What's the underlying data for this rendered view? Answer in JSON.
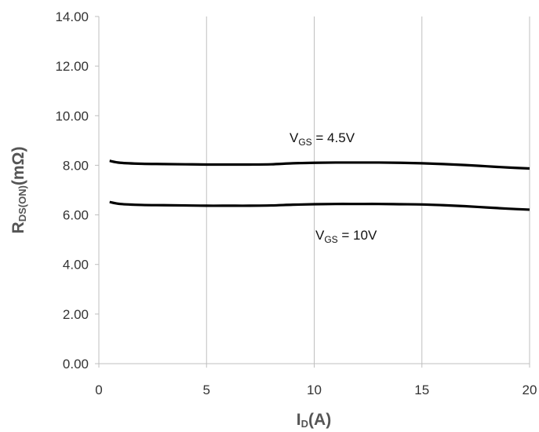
{
  "chart_data": {
    "type": "line",
    "xlabel": {
      "main": "I",
      "sub": "D",
      "tail": "(A)"
    },
    "ylabel": {
      "main": "R",
      "sub": "DS(ON)",
      "tail": "(mΩ)"
    },
    "xlim": [
      0,
      20
    ],
    "ylim": [
      0,
      14
    ],
    "xticks": [
      0,
      5,
      10,
      15,
      20
    ],
    "yticks": [
      0,
      2,
      4,
      6,
      8,
      10,
      12,
      14
    ],
    "xtick_labels": [
      "0",
      "5",
      "10",
      "15",
      "20"
    ],
    "ytick_labels": [
      "0.00",
      "2.00",
      "4.00",
      "6.00",
      "8.00",
      "10.00",
      "12.00",
      "14.00"
    ],
    "grid": "vertical",
    "series": [
      {
        "label_main": "V",
        "label_sub": "GS",
        "label_tail": " = 4.5V",
        "color": "#000000",
        "x": [
          0.5,
          1,
          2,
          3,
          4,
          5,
          6,
          7,
          8,
          9,
          10,
          11,
          12,
          13,
          14,
          15,
          16,
          17,
          18,
          19,
          20
        ],
        "y": [
          8.18,
          8.1,
          8.06,
          8.05,
          8.04,
          8.03,
          8.03,
          8.03,
          8.04,
          8.08,
          8.1,
          8.11,
          8.11,
          8.11,
          8.1,
          8.08,
          8.05,
          8.01,
          7.96,
          7.91,
          7.87
        ]
      },
      {
        "label_main": "V",
        "label_sub": "GS",
        "label_tail": " = 10V",
        "color": "#000000",
        "x": [
          0.5,
          1,
          2,
          3,
          4,
          5,
          6,
          7,
          8,
          9,
          10,
          11,
          12,
          13,
          14,
          15,
          16,
          17,
          18,
          19,
          20
        ],
        "y": [
          6.52,
          6.44,
          6.4,
          6.39,
          6.38,
          6.37,
          6.37,
          6.37,
          6.38,
          6.41,
          6.43,
          6.44,
          6.44,
          6.44,
          6.43,
          6.42,
          6.39,
          6.35,
          6.3,
          6.25,
          6.21
        ]
      }
    ]
  }
}
